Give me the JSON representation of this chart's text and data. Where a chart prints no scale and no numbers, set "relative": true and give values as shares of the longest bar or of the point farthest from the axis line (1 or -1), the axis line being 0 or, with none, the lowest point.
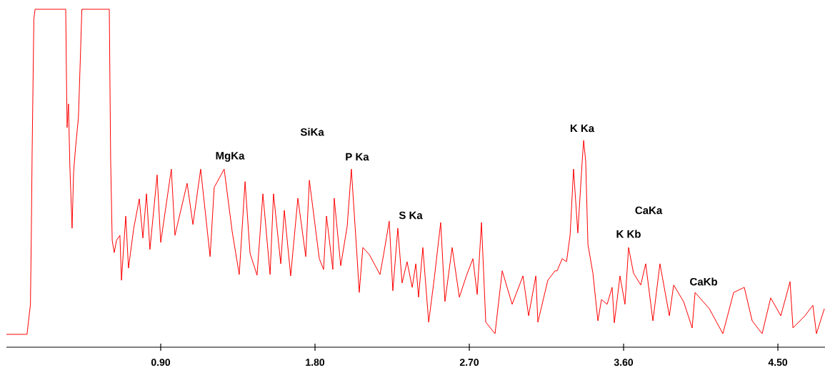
{
  "chart_data": {
    "type": "line",
    "relative": true,
    "xlim": [
      0,
      4.775
    ],
    "xticks": [
      {
        "value": 0.9,
        "label": "0.90"
      },
      {
        "value": 1.8,
        "label": "1.80"
      },
      {
        "value": 2.7,
        "label": "2.70"
      },
      {
        "value": 3.6,
        "label": "3.60"
      },
      {
        "value": 4.5,
        "label": "4.50"
      }
    ],
    "x": [
      0.0,
      0.12,
      0.14,
      0.145,
      0.15,
      0.16,
      0.167,
      0.346,
      0.35,
      0.354,
      0.362,
      0.37,
      0.383,
      0.392,
      0.404,
      0.42,
      0.433,
      0.44,
      0.6,
      0.608,
      0.617,
      0.629,
      0.642,
      0.662,
      0.671,
      0.696,
      0.712,
      0.742,
      0.775,
      0.796,
      0.817,
      0.837,
      0.879,
      0.9,
      0.962,
      0.983,
      1.054,
      1.088,
      1.133,
      1.188,
      1.212,
      1.27,
      1.317,
      1.358,
      1.392,
      1.421,
      1.462,
      1.496,
      1.538,
      1.558,
      1.6,
      1.621,
      1.658,
      1.7,
      1.746,
      1.767,
      1.825,
      1.85,
      1.867,
      1.904,
      1.912,
      1.95,
      1.988,
      2.012,
      2.046,
      2.058,
      2.079,
      2.117,
      2.179,
      2.2,
      2.233,
      2.254,
      2.283,
      2.308,
      2.337,
      2.367,
      2.388,
      2.404,
      2.429,
      2.463,
      2.496,
      2.533,
      2.558,
      2.6,
      2.642,
      2.683,
      2.721,
      2.746,
      2.771,
      2.796,
      2.85,
      2.892,
      2.95,
      3.013,
      3.046,
      3.088,
      3.1,
      3.158,
      3.2,
      3.212,
      3.242,
      3.267,
      3.288,
      3.308,
      3.333,
      3.358,
      3.367,
      3.379,
      3.392,
      3.421,
      3.45,
      3.471,
      3.504,
      3.533,
      3.546,
      3.579,
      3.608,
      3.629,
      3.658,
      3.7,
      3.729,
      3.771,
      3.812,
      3.867,
      3.892,
      3.95,
      4.0,
      4.017,
      4.1,
      4.179,
      4.242,
      4.304,
      4.35,
      4.408,
      4.458,
      4.517,
      4.571,
      4.588,
      4.658,
      4.704,
      4.725,
      4.771
    ],
    "series": [
      {
        "color": "#ff0000",
        "values": [
          0.038,
          0.038,
          0.126,
          0.325,
          0.58,
          0.97,
          1,
          1,
          0.806,
          0.65,
          0.72,
          0.536,
          0.352,
          0.52,
          0.595,
          0.68,
          0.884,
          1,
          1,
          0.553,
          0.316,
          0.28,
          0.316,
          0.331,
          0.198,
          0.388,
          0.234,
          0.35,
          0.439,
          0.323,
          0.454,
          0.289,
          0.51,
          0.31,
          0.527,
          0.331,
          0.485,
          0.363,
          0.527,
          0.268,
          0.473,
          0.527,
          0.342,
          0.215,
          0.49,
          0.278,
          0.213,
          0.454,
          0.215,
          0.454,
          0.247,
          0.405,
          0.211,
          0.441,
          0.268,
          0.494,
          0.262,
          0.23,
          0.388,
          0.23,
          0.441,
          0.241,
          0.359,
          0.527,
          0.262,
          0.162,
          0.295,
          0.274,
          0.215,
          0.274,
          0.373,
          0.167,
          0.352,
          0.19,
          0.253,
          0.177,
          0.247,
          0.148,
          0.295,
          0.074,
          0.205,
          0.369,
          0.135,
          0.295,
          0.148,
          0.211,
          0.262,
          0.156,
          0.369,
          0.074,
          0.04,
          0.226,
          0.127,
          0.211,
          0.093,
          0.211,
          0.074,
          0.198,
          0.226,
          0.226,
          0.262,
          0.253,
          0.331,
          0.527,
          0.338,
          0.546,
          0.612,
          0.549,
          0.304,
          0.219,
          0.078,
          0.141,
          0.127,
          0.177,
          0.072,
          0.211,
          0.127,
          0.295,
          0.219,
          0.184,
          0.247,
          0.078,
          0.247,
          0.093,
          0.184,
          0.135,
          0.057,
          0.162,
          0.114,
          0.04,
          0.162,
          0.177,
          0.078,
          0.04,
          0.146,
          0.093,
          0.194,
          0.057,
          0.093,
          0.124,
          0.04,
          0.114
        ]
      }
    ],
    "annotations": [
      "MgKa",
      "SiKa",
      "P Ka",
      "S Ka",
      "K Ka",
      "CaKa",
      "K Kb",
      "CaKb"
    ]
  }
}
